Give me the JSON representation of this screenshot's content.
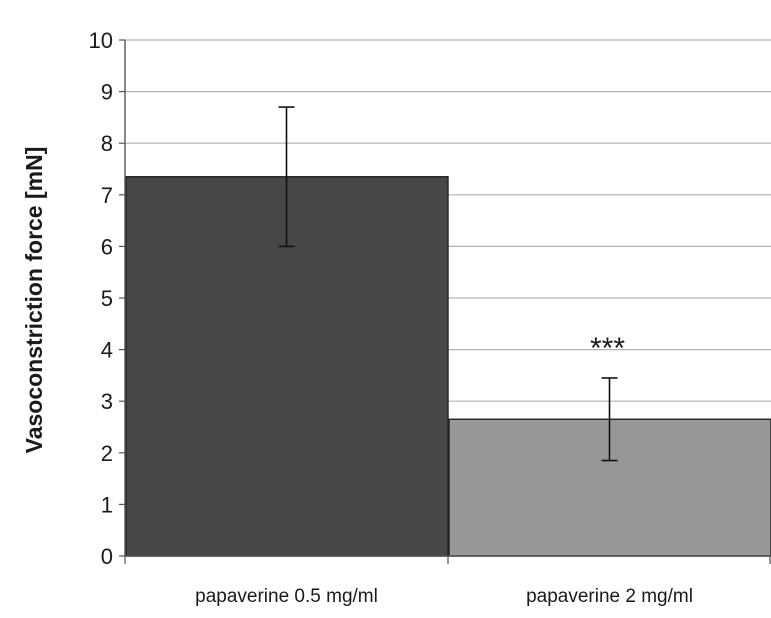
{
  "chart_data": {
    "type": "bar",
    "title": "",
    "xlabel": "",
    "ylabel": "Vasoconstriction force [mN]",
    "ylim": [
      0,
      10
    ],
    "yticks": [
      0,
      1,
      2,
      3,
      4,
      5,
      6,
      7,
      8,
      9,
      10
    ],
    "grid": true,
    "categories": [
      "papaverine 0.5 mg/ml",
      "papaverine 2 mg/ml"
    ],
    "values": [
      7.35,
      2.65
    ],
    "error_low": [
      6.0,
      1.85
    ],
    "error_high": [
      8.7,
      3.45
    ],
    "bar_colors": [
      "#474747",
      "#979797"
    ],
    "annotations": [
      {
        "category_index": 1,
        "text": "***"
      }
    ]
  }
}
